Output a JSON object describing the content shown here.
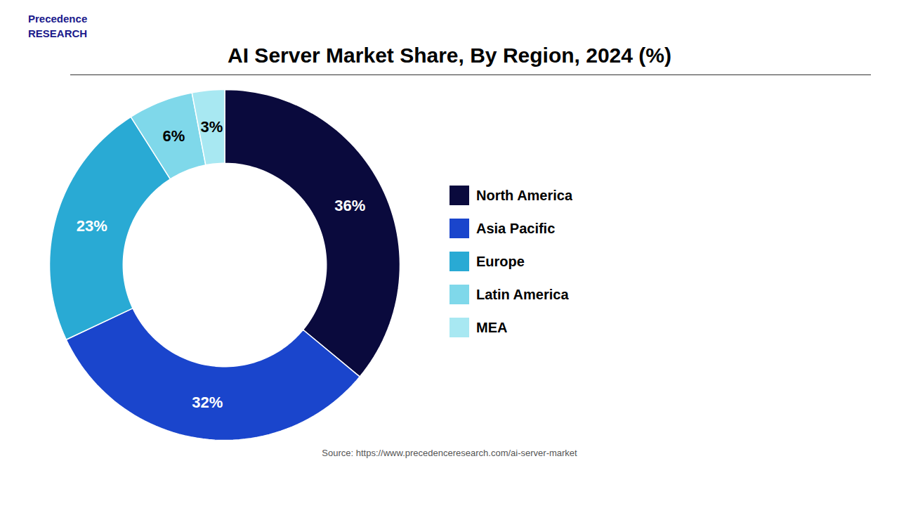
{
  "chart_data": {
    "type": "pie",
    "title": "AI Server Market Share, By Region, 2024 (%)",
    "categories": [
      "North America",
      "Asia Pacific",
      "Europe",
      "Latin America",
      "MEA"
    ],
    "values": [
      36,
      32,
      23,
      6,
      3
    ],
    "value_labels": [
      "36%",
      "32%",
      "23%",
      "6%",
      "3%"
    ],
    "colors": [
      "#0a0a3d",
      "#1a45cc",
      "#29aad4",
      "#7fd8ea",
      "#a8e8f2"
    ],
    "data_labels": true,
    "legend": "right",
    "caption": "Source: https://www.precedenceresearch.com/ai-server-market",
    "annotations": [
      "Precedence\nRESEARCH"
    ]
  }
}
